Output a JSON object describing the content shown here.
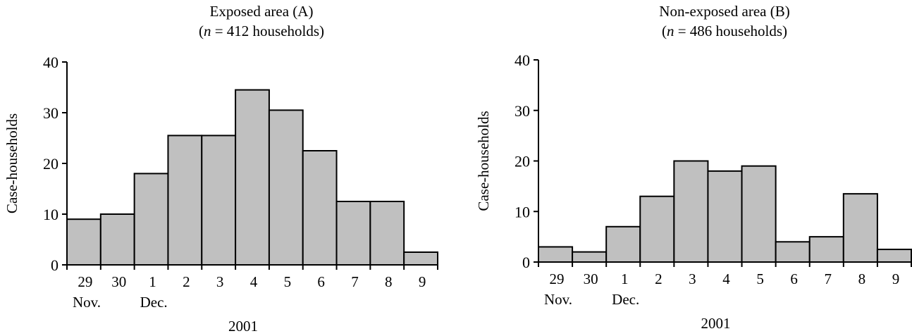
{
  "chart_data": [
    {
      "type": "bar",
      "title": "Exposed area (A)",
      "subtitle": {
        "prefix": "(",
        "n_symbol": "n",
        "rest": " = 412 households)"
      },
      "ylabel": "Case-households",
      "ylim": [
        0,
        40
      ],
      "yticks": [
        0,
        10,
        20,
        30,
        40
      ],
      "categories": [
        "29",
        "30",
        "1",
        "2",
        "3",
        "4",
        "5",
        "6",
        "7",
        "8",
        "9"
      ],
      "month_labels": [
        {
          "text": "Nov.",
          "at": "29"
        },
        {
          "text": "Dec.",
          "at": "1"
        }
      ],
      "year_label": "2001",
      "values": [
        9,
        10,
        18,
        25.5,
        25.5,
        34.5,
        30.5,
        22.5,
        12.5,
        12.5,
        2.5
      ],
      "bar_color": "#c0c0c0"
    },
    {
      "type": "bar",
      "title": "Non-exposed area (B)",
      "subtitle": {
        "prefix": "(",
        "n_symbol": "n",
        "rest": " = 486 households)"
      },
      "ylabel": "Case-households",
      "ylim": [
        0,
        40
      ],
      "yticks": [
        0,
        10,
        20,
        30,
        40
      ],
      "categories": [
        "29",
        "30",
        "1",
        "2",
        "3",
        "4",
        "5",
        "6",
        "7",
        "8",
        "9"
      ],
      "month_labels": [
        {
          "text": "Nov.",
          "at": "29"
        },
        {
          "text": "Dec.",
          "at": "1"
        }
      ],
      "year_label": "2001",
      "values": [
        3,
        2,
        7,
        13,
        20,
        18,
        19,
        4,
        5,
        13.5,
        2.5
      ],
      "bar_color": "#c0c0c0"
    }
  ]
}
